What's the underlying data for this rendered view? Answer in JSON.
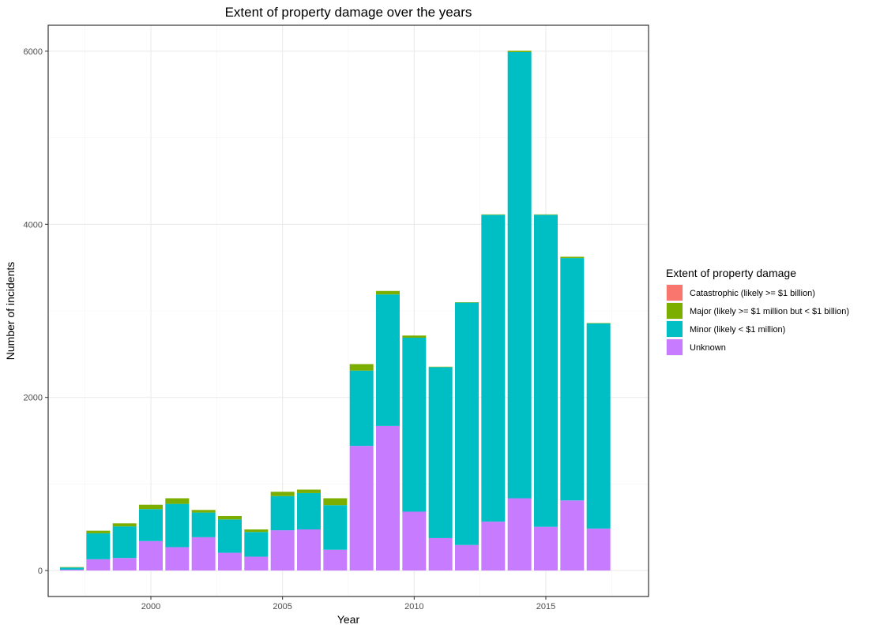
{
  "chart_data": {
    "type": "bar",
    "stacked": true,
    "title": "Extent of property damage over the years",
    "xlabel": "Year",
    "ylabel": "Number of incidents",
    "x_ticks": [
      2000,
      2005,
      2010,
      2015
    ],
    "y_ticks": [
      0,
      2000,
      4000,
      6000
    ],
    "xlim": [
      1996.1,
      2018.9
    ],
    "ylim": [
      -300,
      6300
    ],
    "grid": true,
    "legend": {
      "title": "Extent of property damage",
      "position": "right"
    },
    "categories": [
      1997,
      1998,
      1999,
      2000,
      2001,
      2002,
      2003,
      2004,
      2005,
      2006,
      2007,
      2008,
      2009,
      2010,
      2011,
      2012,
      2013,
      2014,
      2015,
      2016,
      2017
    ],
    "series": [
      {
        "name": "Unknown",
        "color": "#C77CFF",
        "values": [
          10,
          130,
          145,
          340,
          270,
          385,
          205,
          160,
          465,
          475,
          240,
          1440,
          1670,
          680,
          375,
          295,
          565,
          835,
          505,
          810,
          485
        ]
      },
      {
        "name": "Minor (likely < $1 million)",
        "color": "#00BFC4",
        "values": [
          25,
          300,
          365,
          370,
          500,
          285,
          385,
          285,
          395,
          420,
          515,
          870,
          1520,
          2010,
          1975,
          2800,
          3545,
          5155,
          3605,
          2800,
          2370
        ]
      },
      {
        "name": "Major (likely >= $1 million but < $1 billion)",
        "color": "#7CAE00",
        "values": [
          5,
          30,
          35,
          50,
          65,
          30,
          40,
          30,
          50,
          40,
          80,
          75,
          40,
          25,
          5,
          5,
          5,
          15,
          5,
          15,
          5
        ]
      },
      {
        "name": "Catastrophic (likely >= $1 billion)",
        "color": "#F8766D",
        "values": [
          0,
          0,
          0,
          0,
          0,
          0,
          0,
          0,
          0,
          0,
          0,
          0,
          0,
          0,
          0,
          0,
          0,
          0,
          0,
          0,
          0
        ]
      }
    ],
    "legend_order": [
      "Catastrophic (likely >= $1 billion)",
      "Major (likely >= $1 million but < $1 billion)",
      "Minor (likely < $1 million)",
      "Unknown"
    ]
  }
}
